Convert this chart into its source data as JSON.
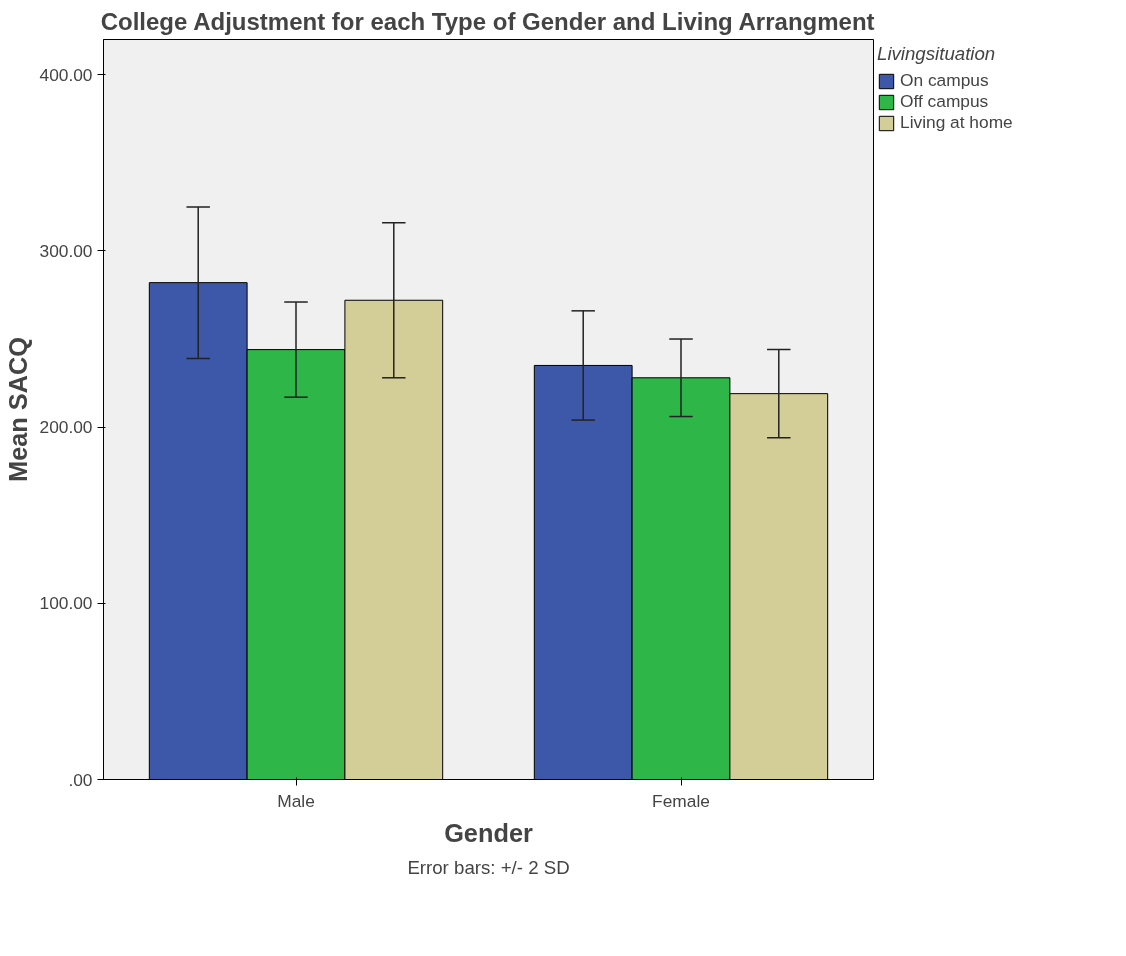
{
  "chart_data": {
    "type": "bar",
    "title": "College Adjustment for each Type of Gender and Living Arrangment",
    "xlabel": "Gender",
    "ylabel": "Mean SACQ",
    "legend_title": "Livingsituation",
    "categories": [
      "Male",
      "Female"
    ],
    "series": [
      {
        "name": "On campus",
        "color": "#3d58a8",
        "values": [
          282,
          235
        ],
        "errors": [
          43,
          31
        ]
      },
      {
        "name": "Off campus",
        "color": "#2eb648",
        "values": [
          244,
          228
        ],
        "errors": [
          27,
          22
        ]
      },
      {
        "name": "Living at home",
        "color": "#d3ce97",
        "values": [
          272,
          219
        ],
        "errors": [
          44,
          25
        ]
      }
    ],
    "ylim": [
      0,
      420
    ],
    "yticks": [
      {
        "value": 0,
        "label": ".00"
      },
      {
        "value": 100,
        "label": "100.00"
      },
      {
        "value": 200,
        "label": "200.00"
      },
      {
        "value": 300,
        "label": "300.00"
      },
      {
        "value": 400,
        "label": "400.00"
      }
    ],
    "grid": false,
    "legend": "right",
    "annotations": [
      "Error bars: +/- 2 SD"
    ]
  }
}
